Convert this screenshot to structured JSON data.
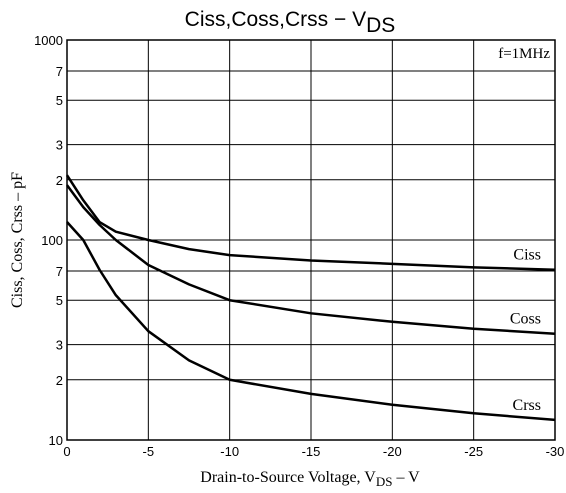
{
  "chart_data": {
    "type": "line",
    "title": [
      "Ciss,Coss,Crss  −  V",
      "DS"
    ],
    "x_label": [
      "Drain-to-Source Voltage, V",
      "DS",
      "  –  V"
    ],
    "y_label": "Ciss, Coss, Crss  –  pF",
    "annotation": "f=1MHz",
    "x": [
      0,
      -1,
      -2,
      -3,
      -5,
      -7.5,
      -10,
      -15,
      -20,
      -25,
      -30
    ],
    "series": [
      {
        "name": "Ciss",
        "color": "#000000",
        "values": [
          211,
          158,
          123,
          110,
          100,
          90,
          84,
          79,
          76,
          73,
          71
        ]
      },
      {
        "name": "Coss",
        "color": "#000000",
        "values": [
          188,
          146,
          119,
          100,
          75,
          60,
          50,
          43,
          39,
          36,
          34
        ]
      },
      {
        "name": "Crss",
        "color": "#000000",
        "values": [
          123,
          100,
          71,
          53,
          35,
          25,
          20,
          17,
          15,
          13.6,
          12.6
        ]
      }
    ],
    "xlim": [
      0,
      -30
    ],
    "xticks": [
      0,
      -5,
      -10,
      -15,
      -20,
      -25,
      -30
    ],
    "ylim": [
      10,
      1000
    ],
    "log_y": true,
    "grid": true,
    "yticks": [
      10,
      {
        "value": 20,
        "label": "2"
      },
      {
        "value": 30,
        "label": "3"
      },
      {
        "value": 50,
        "label": "5"
      },
      {
        "value": 70,
        "label": "7"
      },
      100,
      {
        "value": 200,
        "label": "2"
      },
      {
        "value": 300,
        "label": "3"
      },
      {
        "value": 500,
        "label": "5"
      },
      {
        "value": 700,
        "label": "7"
      },
      1000
    ]
  }
}
